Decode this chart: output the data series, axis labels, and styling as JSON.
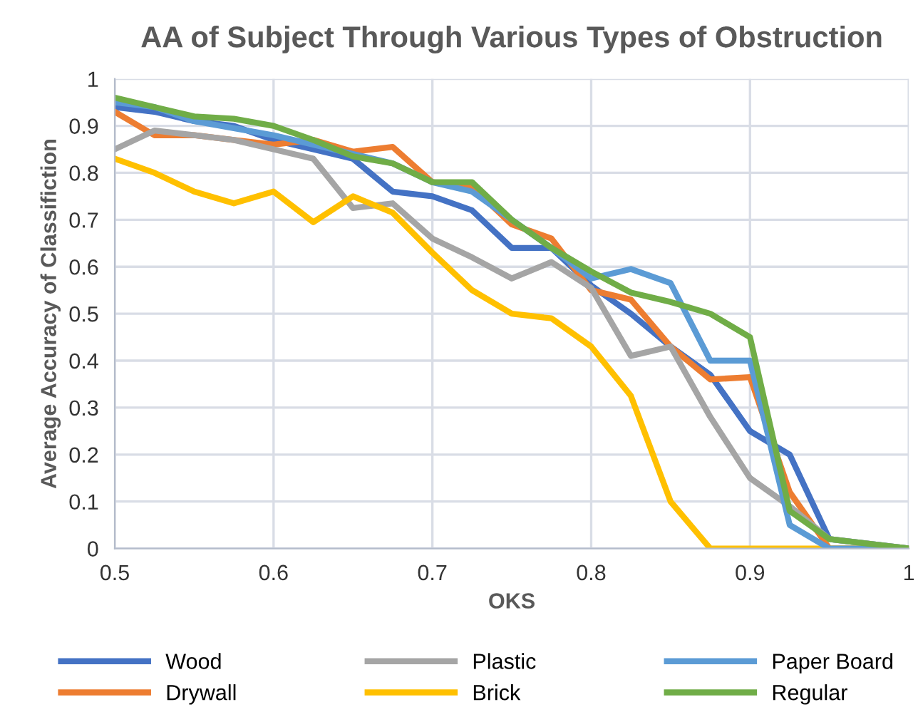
{
  "chart_data": {
    "type": "line",
    "title": "AA of Subject Through Various Types of Obstruction",
    "xlabel": "OKS",
    "ylabel": "Average Accuracy of Classifiction",
    "x": [
      0.5,
      0.525,
      0.55,
      0.575,
      0.6,
      0.625,
      0.65,
      0.675,
      0.7,
      0.725,
      0.75,
      0.775,
      0.8,
      0.825,
      0.85,
      0.875,
      0.9,
      0.925,
      0.95,
      1.0
    ],
    "series": [
      {
        "name": "Wood",
        "color": "#4472c4",
        "values": [
          0.94,
          0.93,
          0.91,
          0.9,
          0.87,
          0.85,
          0.83,
          0.76,
          0.75,
          0.72,
          0.64,
          0.64,
          0.56,
          0.5,
          0.43,
          0.37,
          0.25,
          0.2,
          0.02,
          0
        ]
      },
      {
        "name": "Drywall",
        "color": "#ed7d31",
        "values": [
          0.93,
          0.88,
          0.88,
          0.87,
          0.86,
          0.87,
          0.845,
          0.855,
          0.78,
          0.77,
          0.69,
          0.66,
          0.55,
          0.53,
          0.43,
          0.36,
          0.365,
          0.12,
          0,
          0
        ]
      },
      {
        "name": "Plastic",
        "color": "#a5a5a5",
        "values": [
          0.85,
          0.89,
          0.88,
          0.87,
          0.85,
          0.83,
          0.725,
          0.735,
          0.66,
          0.62,
          0.575,
          0.61,
          0.555,
          0.41,
          0.43,
          0.28,
          0.15,
          0.09,
          0.02,
          0
        ]
      },
      {
        "name": "Brick",
        "color": "#ffc000",
        "values": [
          0.83,
          0.8,
          0.76,
          0.735,
          0.76,
          0.695,
          0.75,
          0.715,
          0.63,
          0.55,
          0.5,
          0.49,
          0.43,
          0.325,
          0.1,
          0,
          0,
          0,
          0,
          0
        ]
      },
      {
        "name": "Paper Board",
        "color": "#5b9bd5",
        "values": [
          0.95,
          0.94,
          0.91,
          0.895,
          0.88,
          0.86,
          0.84,
          0.82,
          0.78,
          0.76,
          0.7,
          0.64,
          0.575,
          0.595,
          0.565,
          0.4,
          0.4,
          0.05,
          0,
          0
        ]
      },
      {
        "name": "Regular",
        "color": "#70ad47",
        "values": [
          0.96,
          0.94,
          0.92,
          0.915,
          0.9,
          0.87,
          0.835,
          0.82,
          0.78,
          0.78,
          0.7,
          0.64,
          0.59,
          0.545,
          0.525,
          0.5,
          0.45,
          0.08,
          0.02,
          0
        ]
      }
    ],
    "xlim": [
      0.5,
      1
    ],
    "ylim": [
      0,
      1
    ],
    "xticks": [
      0.5,
      0.6,
      0.7,
      0.8,
      0.9,
      1
    ],
    "yticks": [
      0,
      0.1,
      0.2,
      0.3,
      0.4,
      0.5,
      0.6,
      0.7,
      0.8,
      0.9,
      1
    ],
    "grid": true,
    "legend": "bottom",
    "marker": "none",
    "line_style": "solid"
  }
}
